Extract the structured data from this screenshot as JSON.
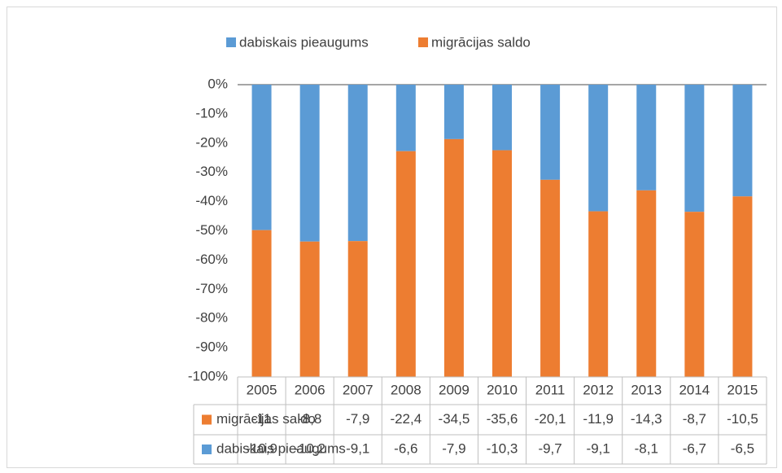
{
  "chart_data": {
    "type": "bar",
    "stacked": "percent",
    "categories": [
      "2005",
      "2006",
      "2007",
      "2008",
      "2009",
      "2010",
      "2011",
      "2012",
      "2013",
      "2014",
      "2015"
    ],
    "series": [
      {
        "name": "dabiskais pieaugums",
        "color": "#5b9bd5",
        "values": [
          -10.9,
          -10.2,
          -9.1,
          -6.6,
          -7.9,
          -10.3,
          -9.7,
          -9.1,
          -8.1,
          -6.7,
          -6.5
        ],
        "value_labels": [
          "-10,9",
          "-10,2",
          "-9,1",
          "-6,6",
          "-7,9",
          "-10,3",
          "-9,7",
          "-9,1",
          "-8,1",
          "-6,7",
          "-6,5"
        ]
      },
      {
        "name": "migrācijas saldo",
        "color": "#ed7d31",
        "values": [
          -11,
          -8.8,
          -7.9,
          -22.4,
          -34.5,
          -35.6,
          -20.1,
          -11.9,
          -14.3,
          -8.7,
          -10.5
        ],
        "value_labels": [
          "-11",
          "-8,8",
          "-7,9",
          "-22,4",
          "-34,5",
          "-35,6",
          "-20,1",
          "-11,9",
          "-14,3",
          "-8,7",
          "-10,5"
        ]
      }
    ],
    "ylim": [
      -100,
      0
    ],
    "yticks": [
      {
        "value": 0,
        "label": "0%"
      },
      {
        "value": -10,
        "label": "-10%"
      },
      {
        "value": -20,
        "label": "-20%"
      },
      {
        "value": -30,
        "label": "-30%"
      },
      {
        "value": -40,
        "label": "-40%"
      },
      {
        "value": -50,
        "label": "-50%"
      },
      {
        "value": -60,
        "label": "-60%"
      },
      {
        "value": -70,
        "label": "-70%"
      },
      {
        "value": -80,
        "label": "-80%"
      },
      {
        "value": -90,
        "label": "-90%"
      },
      {
        "value": -100,
        "label": "-100%"
      }
    ],
    "legend": "top",
    "data_table": true
  }
}
